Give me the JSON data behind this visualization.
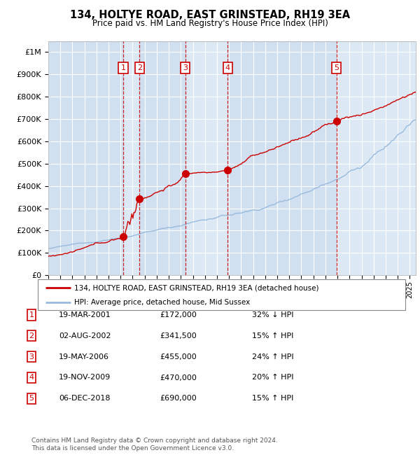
{
  "title": "134, HOLTYE ROAD, EAST GRINSTEAD, RH19 3EA",
  "subtitle": "Price paid vs. HM Land Registry's House Price Index (HPI)",
  "ylabel_ticks": [
    "£0",
    "£100K",
    "£200K",
    "£300K",
    "£400K",
    "£500K",
    "£600K",
    "£700K",
    "£800K",
    "£900K",
    "£1M"
  ],
  "ytick_values": [
    0,
    100000,
    200000,
    300000,
    400000,
    500000,
    600000,
    700000,
    800000,
    900000,
    1000000
  ],
  "ylim": [
    0,
    1050000
  ],
  "xlim_start": 1995.0,
  "xlim_end": 2025.5,
  "plot_bg_color": "#dce9f5",
  "grid_color": "#ffffff",
  "sale_markers": [
    {
      "year": 2001.21,
      "price": 172000,
      "label": "1"
    },
    {
      "year": 2002.58,
      "price": 341500,
      "label": "2"
    },
    {
      "year": 2006.38,
      "price": 455000,
      "label": "3"
    },
    {
      "year": 2009.89,
      "price": 470000,
      "label": "4"
    },
    {
      "year": 2018.92,
      "price": 690000,
      "label": "5"
    }
  ],
  "vline_x": [
    2001.21,
    2002.58,
    2006.38,
    2009.89,
    2018.92
  ],
  "legend_line1": "134, HOLTYE ROAD, EAST GRINSTEAD, RH19 3EA (detached house)",
  "legend_line2": "HPI: Average price, detached house, Mid Sussex",
  "table_rows": [
    {
      "num": "1",
      "date": "19-MAR-2001",
      "price": "£172,000",
      "change": "32% ↓ HPI"
    },
    {
      "num": "2",
      "date": "02-AUG-2002",
      "price": "£341,500",
      "change": "15% ↑ HPI"
    },
    {
      "num": "3",
      "date": "19-MAY-2006",
      "price": "£455,000",
      "change": "24% ↑ HPI"
    },
    {
      "num": "4",
      "date": "19-NOV-2009",
      "price": "£470,000",
      "change": "20% ↑ HPI"
    },
    {
      "num": "5",
      "date": "06-DEC-2018",
      "price": "£690,000",
      "change": "15% ↑ HPI"
    }
  ],
  "footer": "Contains HM Land Registry data © Crown copyright and database right 2024.\nThis data is licensed under the Open Government Licence v3.0.",
  "hpi_line_color": "#99bbdd",
  "price_line_color": "#cc0000",
  "marker_color": "#cc0000",
  "vline_color": "#cc0000",
  "box_edge_color": "#cc0000",
  "shade_color": "#c5d8ee",
  "shade_alpha": 0.5
}
